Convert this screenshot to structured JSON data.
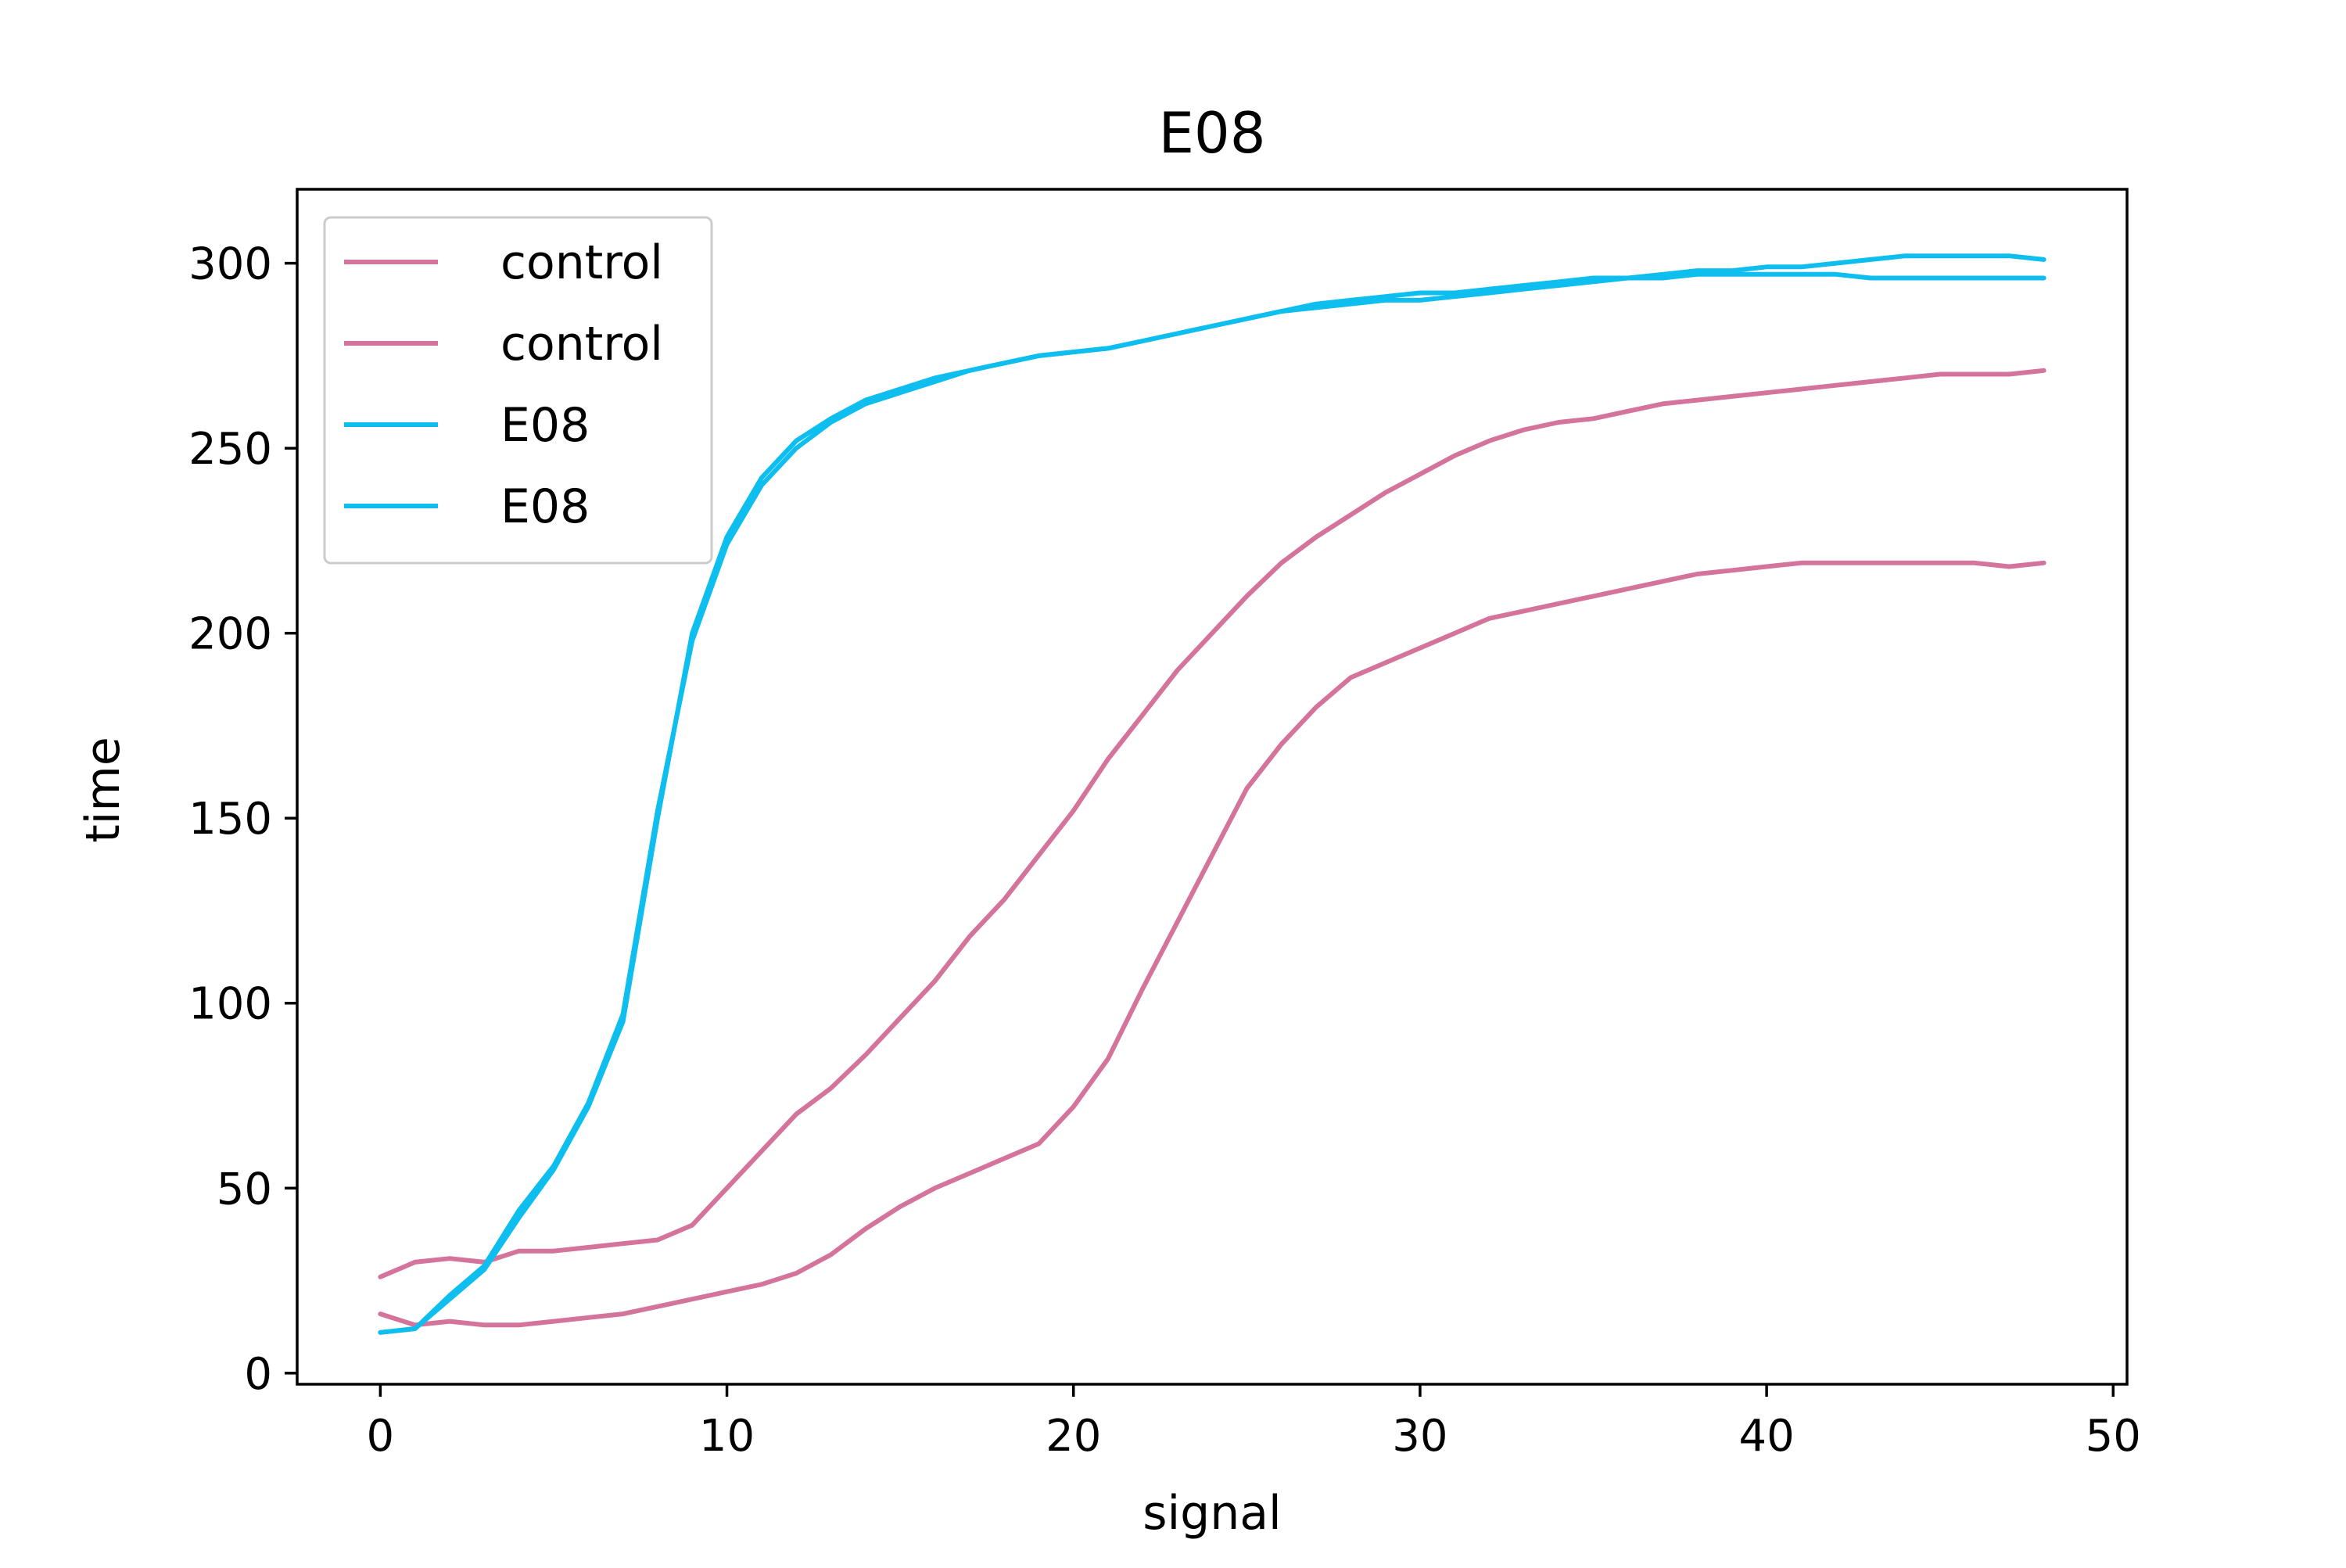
{
  "chart_data": {
    "type": "line",
    "title": "E08",
    "xlabel": "signal",
    "ylabel": "time",
    "xlim": [
      -2.4,
      50.4
    ],
    "ylim": [
      -3,
      320
    ],
    "xticks": [
      0,
      10,
      20,
      30,
      40,
      50
    ],
    "yticks": [
      0,
      50,
      100,
      150,
      200,
      250,
      300
    ],
    "grid": false,
    "legend_position": "upper-left",
    "series": [
      {
        "name": "control",
        "color": "#d4739b",
        "x": [
          0,
          1,
          2,
          3,
          4,
          5,
          6,
          7,
          8,
          9,
          10,
          11,
          12,
          13,
          14,
          15,
          16,
          17,
          18,
          19,
          20,
          21,
          22,
          23,
          24,
          25,
          26,
          27,
          28,
          29,
          30,
          31,
          32,
          33,
          34,
          35,
          36,
          37,
          38,
          39,
          40,
          41,
          42,
          43,
          44,
          45,
          46,
          47,
          48
        ],
        "y": [
          26,
          30,
          31,
          30,
          33,
          33,
          34,
          35,
          36,
          40,
          50,
          60,
          70,
          77,
          86,
          96,
          106,
          118,
          128,
          140,
          152,
          166,
          178,
          190,
          200,
          210,
          219,
          226,
          232,
          238,
          243,
          248,
          252,
          255,
          257,
          258,
          260,
          262,
          263,
          264,
          265,
          266,
          267,
          268,
          269,
          270,
          270,
          270,
          271
        ]
      },
      {
        "name": "control",
        "color": "#d4739b",
        "x": [
          0,
          1,
          2,
          3,
          4,
          5,
          6,
          7,
          8,
          9,
          10,
          11,
          12,
          13,
          14,
          15,
          16,
          17,
          18,
          19,
          20,
          21,
          22,
          23,
          24,
          25,
          26,
          27,
          28,
          29,
          30,
          31,
          32,
          33,
          34,
          35,
          36,
          37,
          38,
          39,
          40,
          41,
          42,
          43,
          44,
          45,
          46,
          47,
          48
        ],
        "y": [
          16,
          13,
          14,
          13,
          13,
          14,
          15,
          16,
          18,
          20,
          22,
          24,
          27,
          32,
          39,
          45,
          50,
          54,
          58,
          62,
          72,
          85,
          104,
          122,
          140,
          158,
          170,
          180,
          188,
          192,
          196,
          200,
          204,
          206,
          208,
          210,
          212,
          214,
          216,
          217,
          218,
          219,
          219,
          219,
          219,
          219,
          219,
          218,
          219
        ]
      },
      {
        "name": "E08",
        "color": "#0ebeef",
        "x": [
          0,
          1,
          2,
          3,
          4,
          5,
          6,
          7,
          8,
          9,
          10,
          11,
          12,
          13,
          14,
          15,
          16,
          17,
          18,
          19,
          20,
          21,
          22,
          23,
          24,
          25,
          26,
          27,
          28,
          29,
          30,
          31,
          32,
          33,
          34,
          35,
          36,
          37,
          38,
          39,
          40,
          41,
          42,
          43,
          44,
          45,
          46,
          47,
          48
        ],
        "y": [
          11,
          12,
          20,
          28,
          42,
          55,
          72,
          95,
          150,
          200,
          226,
          242,
          252,
          258,
          263,
          266,
          269,
          271,
          273,
          275,
          276,
          277,
          279,
          281,
          283,
          285,
          287,
          289,
          290,
          291,
          292,
          292,
          293,
          294,
          295,
          296,
          296,
          297,
          298,
          298,
          299,
          299,
          300,
          301,
          302,
          302,
          302,
          302,
          301
        ]
      },
      {
        "name": "E08",
        "color": "#0ebeef",
        "x": [
          0,
          1,
          2,
          3,
          4,
          5,
          6,
          7,
          8,
          9,
          10,
          11,
          12,
          13,
          14,
          15,
          16,
          17,
          18,
          19,
          20,
          21,
          22,
          23,
          24,
          25,
          26,
          27,
          28,
          29,
          30,
          31,
          32,
          33,
          34,
          35,
          36,
          37,
          38,
          39,
          40,
          41,
          42,
          43,
          44,
          45,
          46,
          47,
          48
        ],
        "y": [
          11,
          12,
          21,
          29,
          44,
          56,
          73,
          97,
          152,
          198,
          224,
          240,
          250,
          257,
          262,
          265,
          268,
          271,
          273,
          275,
          276,
          277,
          279,
          281,
          283,
          285,
          287,
          288,
          289,
          290,
          290,
          291,
          292,
          293,
          294,
          295,
          296,
          296,
          297,
          297,
          297,
          297,
          297,
          296,
          296,
          296,
          296,
          296,
          296
        ]
      }
    ]
  }
}
